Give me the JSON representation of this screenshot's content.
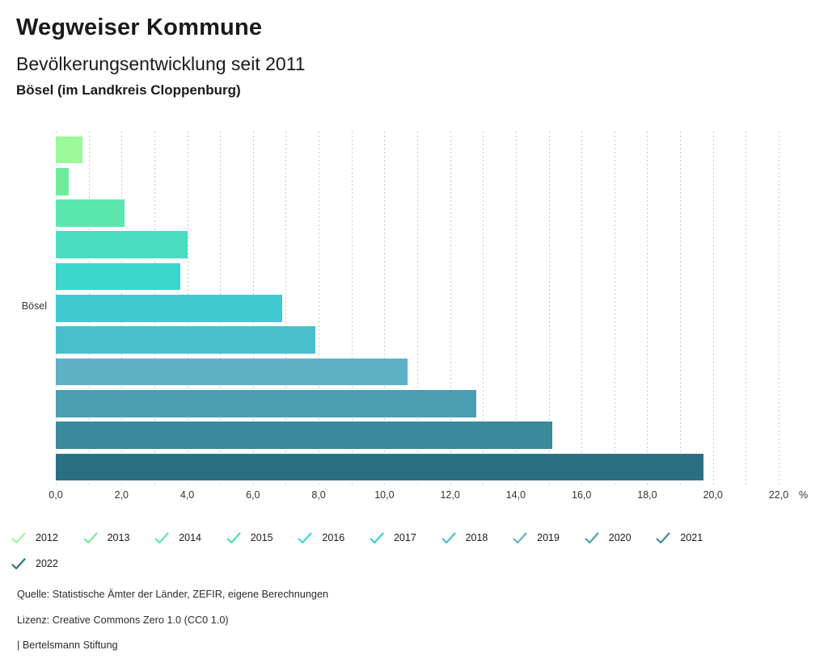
{
  "header": {
    "title": "Wegweiser Kommune",
    "subtitle": "Bevölkerungsentwicklung seit 2011",
    "municipality": "Bösel (im Landkreis Cloppenburg)"
  },
  "chart_data": {
    "type": "bar",
    "orientation": "horizontal",
    "title": "Bevölkerungsentwicklung seit 2011",
    "category_label": "Bösel",
    "unit_label": "%",
    "grid": true,
    "legend_position": "bottom",
    "axis": {
      "min": 0,
      "max": 22,
      "grid_step": 1,
      "label_step": 2,
      "tick_labels": [
        "0,0",
        "2,0",
        "4,0",
        "6,0",
        "8,0",
        "10,0",
        "12,0",
        "14,0",
        "16,0",
        "18,0",
        "20,0",
        "22,0"
      ]
    },
    "series": [
      {
        "name": "2012",
        "value": 0.8,
        "color": "#9BF89B"
      },
      {
        "name": "2013",
        "value": 0.4,
        "color": "#71EC9D"
      },
      {
        "name": "2014",
        "value": 2.1,
        "color": "#5CE7AE"
      },
      {
        "name": "2015",
        "value": 4.0,
        "color": "#49DEC2"
      },
      {
        "name": "2016",
        "value": 3.8,
        "color": "#3CD6CB"
      },
      {
        "name": "2017",
        "value": 6.9,
        "color": "#3FCAD1"
      },
      {
        "name": "2018",
        "value": 7.9,
        "color": "#4ABFCC"
      },
      {
        "name": "2019",
        "value": 10.7,
        "color": "#5DB2C6"
      },
      {
        "name": "2020",
        "value": 12.8,
        "color": "#4A9EB1"
      },
      {
        "name": "2021",
        "value": 15.1,
        "color": "#3A8A9C"
      },
      {
        "name": "2022",
        "value": 19.7,
        "color": "#2B7082"
      }
    ],
    "legend_rows": [
      10,
      1
    ]
  },
  "footer": {
    "source": "Quelle: Statistische Ämter der Länder, ZEFIR, eigene Berechnungen",
    "license": "Lizenz: Creative Commons Zero 1.0 (CC0 1.0)",
    "attribution": "| Bertelsmann Stiftung"
  }
}
